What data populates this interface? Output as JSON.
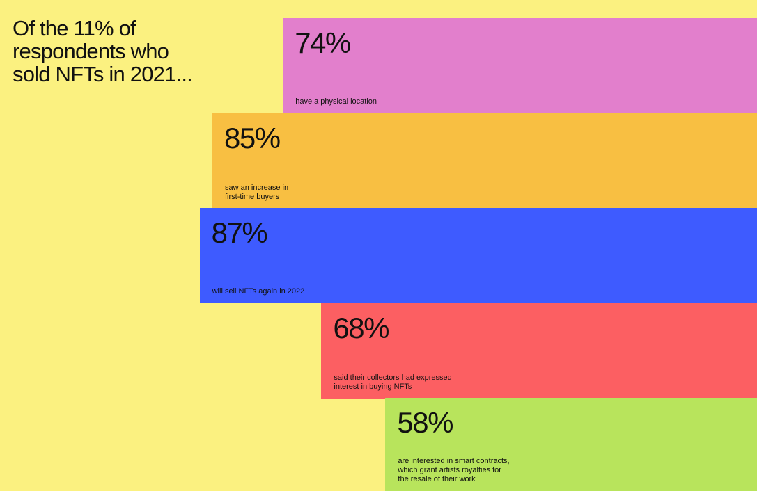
{
  "colors": {
    "background": "#fbf180"
  },
  "title": "Of the 11% of\nrespondents who\nsold NFTs in 2021...",
  "chart_data": {
    "type": "bar",
    "orientation": "horizontal",
    "unit": "%",
    "title": "Of the 11% of respondents who sold NFTs in 2021...",
    "xlim": [
      0,
      100
    ],
    "grid": false,
    "legend": "none",
    "categories": [
      "have a physical location",
      "saw an increase in first-time buyers",
      "will sell NFTs again in 2022",
      "said their collectors had expressed interest in buying NFTs",
      "are interested in smart contracts, which grant artists royalties for the resale of their work"
    ],
    "values": [
      74,
      85,
      87,
      68,
      58
    ],
    "labels": [
      "74%",
      "85%",
      "87%",
      "68%",
      "58%"
    ],
    "captions": [
      "have a physical location",
      "saw an increase in\nfirst-time buyers",
      "will sell NFTs again in 2022",
      "said their collectors had expressed\ninterest in buying NFTs",
      "are interested in smart contracts,\nwhich grant artists royalties for\nthe resale of their work"
    ],
    "colors": [
      "#e27fcc",
      "#f8bf42",
      "#3e5bff",
      "#fc5f62",
      "#b8e45c"
    ]
  }
}
